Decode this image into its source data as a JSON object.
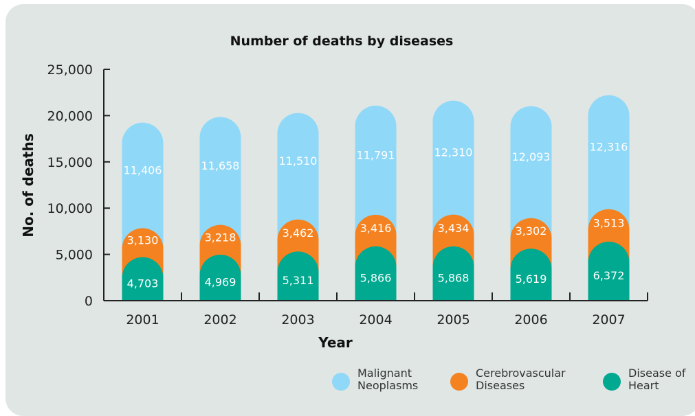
{
  "chart_data": {
    "type": "bar",
    "stacked": true,
    "title": "Number of deaths by diseases",
    "xlabel": "Year",
    "ylabel": "No. of deaths",
    "ylim": [
      0,
      25000
    ],
    "yticks": [
      "0",
      "5,000",
      "10,000",
      "15,000",
      "20,000",
      "25,000"
    ],
    "categories": [
      "2001",
      "2002",
      "2003",
      "2004",
      "2005",
      "2006",
      "2007"
    ],
    "series": [
      {
        "name": "Disease of Heart",
        "legend_lines": [
          "Disease of",
          "Heart"
        ],
        "color": "#00a98f",
        "values": [
          4703,
          4969,
          5311,
          5866,
          5868,
          5619,
          6372
        ],
        "labels": [
          "4,703",
          "4,969",
          "5,311",
          "5,866",
          "5,868",
          "5,619",
          "6,372"
        ]
      },
      {
        "name": "Cerebrovascular Diseases",
        "legend_lines": [
          "Cerebrovascular",
          "Diseases"
        ],
        "color": "#f58220",
        "values": [
          3130,
          3218,
          3462,
          3416,
          3434,
          3302,
          3513
        ],
        "labels": [
          "3,130",
          "3,218",
          "3,462",
          "3,416",
          "3,434",
          "3,302",
          "3,513"
        ]
      },
      {
        "name": "Malignant Neoplasms",
        "legend_lines": [
          "Malignant",
          "Neoplasms"
        ],
        "color": "#8fd8f8",
        "values": [
          11406,
          11658,
          11510,
          11791,
          12310,
          12093,
          12316
        ],
        "labels": [
          "11,406",
          "11,658",
          "11,510",
          "11,791",
          "12,310",
          "12,093",
          "12,316"
        ]
      }
    ],
    "legend_order": [
      2,
      1,
      0
    ],
    "legend_position": "bottom-right",
    "grid": false
  }
}
